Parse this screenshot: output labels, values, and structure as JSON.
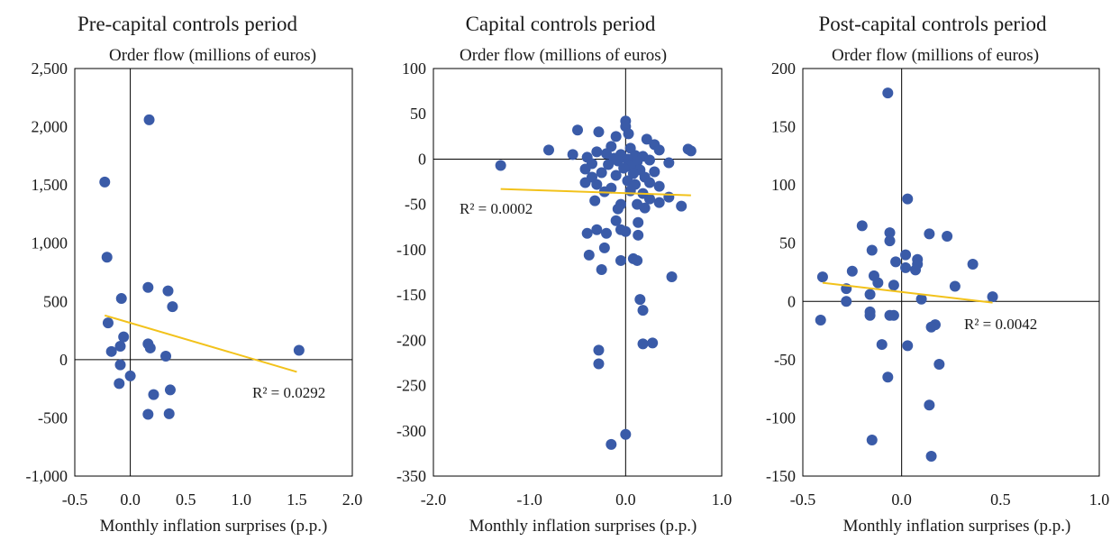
{
  "chart_data": [
    {
      "type": "scatter",
      "title": "Pre-capital controls period",
      "ylabel": "Order flow (millions of euros)",
      "xlabel": "Monthly inflation surprises (p.p.)",
      "xlim": [
        -0.5,
        2.0
      ],
      "ylim": [
        -1000,
        2500
      ],
      "xticks": [
        -0.5,
        0.0,
        0.5,
        1.0,
        1.5,
        2.0
      ],
      "yticks": [
        -1000,
        -500,
        0,
        500,
        1000,
        1500,
        2000,
        2500
      ],
      "xtick_labels": [
        "-0.5",
        "0.0",
        "0.5",
        "1.0",
        "1.5",
        "2.0"
      ],
      "ytick_labels": [
        "-1,000",
        "-500",
        "0",
        "500",
        "1,000",
        "1,500",
        "2,000",
        "2,500"
      ],
      "point_color": "#3a5ba8",
      "trend_color": "#f2c21b",
      "trendline": {
        "x": [
          -0.23,
          1.5
        ],
        "y": [
          380,
          -105
        ]
      },
      "r_squared": "R² = 0.0292",
      "points": [
        {
          "x": 0.17,
          "y": 2060
        },
        {
          "x": -0.23,
          "y": 1525
        },
        {
          "x": -0.21,
          "y": 880
        },
        {
          "x": 0.16,
          "y": 620
        },
        {
          "x": 0.34,
          "y": 590
        },
        {
          "x": -0.08,
          "y": 525
        },
        {
          "x": 0.38,
          "y": 455
        },
        {
          "x": -0.2,
          "y": 315
        },
        {
          "x": -0.06,
          "y": 195
        },
        {
          "x": 0.16,
          "y": 135
        },
        {
          "x": -0.09,
          "y": 115
        },
        {
          "x": 0.18,
          "y": 100
        },
        {
          "x": -0.17,
          "y": 70
        },
        {
          "x": 1.52,
          "y": 80
        },
        {
          "x": 0.32,
          "y": 30
        },
        {
          "x": -0.09,
          "y": -45
        },
        {
          "x": 0.0,
          "y": -140
        },
        {
          "x": -0.1,
          "y": -205
        },
        {
          "x": 0.36,
          "y": -260
        },
        {
          "x": 0.21,
          "y": -300
        },
        {
          "x": 0.16,
          "y": -470
        },
        {
          "x": 0.35,
          "y": -465
        }
      ]
    },
    {
      "type": "scatter",
      "title": "Capital controls period",
      "ylabel": "Order flow (millions of euros)",
      "xlabel": "Monthly inflation surprises (p.p.)",
      "xlim": [
        -2.0,
        1.0
      ],
      "ylim": [
        -350,
        100
      ],
      "xticks": [
        -2.0,
        -1.0,
        0.0,
        1.0
      ],
      "yticks": [
        -350,
        -300,
        -250,
        -200,
        -150,
        -100,
        -50,
        0,
        50,
        100
      ],
      "xtick_labels": [
        "-2.0",
        "-1.0",
        "0.0",
        "1.0"
      ],
      "ytick_labels": [
        "-350",
        "-300",
        "-250",
        "-200",
        "-150",
        "-100",
        "-50",
        "0",
        "50",
        "100"
      ],
      "point_color": "#3a5ba8",
      "trend_color": "#f2c21b",
      "trendline": {
        "x": [
          -1.3,
          0.68
        ],
        "y": [
          -33,
          -40
        ]
      },
      "r_squared": "R² = 0.0002",
      "points": [
        {
          "x": -1.3,
          "y": -7
        },
        {
          "x": -0.8,
          "y": 10
        },
        {
          "x": -0.55,
          "y": 5
        },
        {
          "x": -0.5,
          "y": 32
        },
        {
          "x": -0.28,
          "y": 30
        },
        {
          "x": 0.0,
          "y": 42
        },
        {
          "x": 0.0,
          "y": 36
        },
        {
          "x": 0.03,
          "y": 28
        },
        {
          "x": -0.1,
          "y": 25
        },
        {
          "x": 0.22,
          "y": 22
        },
        {
          "x": 0.3,
          "y": 16
        },
        {
          "x": -0.15,
          "y": 14
        },
        {
          "x": 0.05,
          "y": 12
        },
        {
          "x": 0.35,
          "y": 10
        },
        {
          "x": 0.65,
          "y": 11
        },
        {
          "x": 0.68,
          "y": 9
        },
        {
          "x": -0.3,
          "y": 8
        },
        {
          "x": -0.2,
          "y": 6
        },
        {
          "x": -0.05,
          "y": 5
        },
        {
          "x": 0.1,
          "y": 4
        },
        {
          "x": 0.18,
          "y": 3
        },
        {
          "x": -0.4,
          "y": 2
        },
        {
          "x": -0.12,
          "y": 1
        },
        {
          "x": 0.02,
          "y": 0
        },
        {
          "x": 0.25,
          "y": -1
        },
        {
          "x": -0.08,
          "y": -2
        },
        {
          "x": 0.12,
          "y": -3
        },
        {
          "x": 0.45,
          "y": -4
        },
        {
          "x": -0.35,
          "y": -5
        },
        {
          "x": -0.18,
          "y": -6
        },
        {
          "x": 0.05,
          "y": -8
        },
        {
          "x": -0.02,
          "y": -10
        },
        {
          "x": 0.15,
          "y": -12
        },
        {
          "x": -0.42,
          "y": -11
        },
        {
          "x": 0.3,
          "y": -14
        },
        {
          "x": -0.25,
          "y": -15
        },
        {
          "x": 0.08,
          "y": -16
        },
        {
          "x": -0.1,
          "y": -18
        },
        {
          "x": 0.2,
          "y": -20
        },
        {
          "x": -0.35,
          "y": -20
        },
        {
          "x": 0.02,
          "y": -24
        },
        {
          "x": 0.25,
          "y": -26
        },
        {
          "x": -0.42,
          "y": -26
        },
        {
          "x": -0.3,
          "y": -28
        },
        {
          "x": 0.1,
          "y": -28
        },
        {
          "x": 0.35,
          "y": -30
        },
        {
          "x": -0.15,
          "y": -32
        },
        {
          "x": 0.05,
          "y": -35
        },
        {
          "x": -0.22,
          "y": -36
        },
        {
          "x": 0.18,
          "y": -38
        },
        {
          "x": 0.45,
          "y": -42
        },
        {
          "x": 0.25,
          "y": -44
        },
        {
          "x": -0.32,
          "y": -46
        },
        {
          "x": 0.35,
          "y": -48
        },
        {
          "x": -0.05,
          "y": -50
        },
        {
          "x": 0.12,
          "y": -50
        },
        {
          "x": 0.58,
          "y": -52
        },
        {
          "x": 0.2,
          "y": -54
        },
        {
          "x": -0.08,
          "y": -55
        },
        {
          "x": -0.1,
          "y": -68
        },
        {
          "x": 0.13,
          "y": -70
        },
        {
          "x": -0.3,
          "y": -78
        },
        {
          "x": -0.05,
          "y": -78
        },
        {
          "x": 0.0,
          "y": -80
        },
        {
          "x": -0.2,
          "y": -82
        },
        {
          "x": 0.13,
          "y": -84
        },
        {
          "x": -0.4,
          "y": -82
        },
        {
          "x": -0.22,
          "y": -98
        },
        {
          "x": -0.38,
          "y": -106
        },
        {
          "x": -0.05,
          "y": -112
        },
        {
          "x": 0.08,
          "y": -110
        },
        {
          "x": 0.12,
          "y": -112
        },
        {
          "x": -0.25,
          "y": -122
        },
        {
          "x": 0.48,
          "y": -130
        },
        {
          "x": 0.15,
          "y": -155
        },
        {
          "x": 0.18,
          "y": -167
        },
        {
          "x": 0.18,
          "y": -204
        },
        {
          "x": 0.28,
          "y": -203
        },
        {
          "x": -0.28,
          "y": -211
        },
        {
          "x": -0.28,
          "y": -226
        },
        {
          "x": 0.0,
          "y": -304
        },
        {
          "x": -0.15,
          "y": -315
        }
      ]
    },
    {
      "type": "scatter",
      "title": "Post-capital controls period",
      "ylabel": "Order flow (millions of euros)",
      "xlabel": "Monthly inflation surprises (p.p.)",
      "xlim": [
        -0.5,
        1.0
      ],
      "ylim": [
        -150,
        200
      ],
      "xticks": [
        -0.5,
        0.0,
        0.5,
        1.0
      ],
      "yticks": [
        -150,
        -100,
        -50,
        0,
        50,
        100,
        150,
        200
      ],
      "xtick_labels": [
        "-0.5",
        "0.0",
        "0.5",
        "1.0"
      ],
      "ytick_labels": [
        "-150",
        "-100",
        "-50",
        "0",
        "50",
        "100",
        "150",
        "200"
      ],
      "point_color": "#3a5ba8",
      "trend_color": "#f2c21b",
      "trendline": {
        "x": [
          -0.4,
          0.46
        ],
        "y": [
          16,
          -1
        ]
      },
      "r_squared": "R² = 0.0042",
      "points": [
        {
          "x": -0.07,
          "y": 179
        },
        {
          "x": 0.03,
          "y": 88
        },
        {
          "x": -0.2,
          "y": 65
        },
        {
          "x": -0.06,
          "y": 59
        },
        {
          "x": 0.14,
          "y": 58
        },
        {
          "x": 0.23,
          "y": 56
        },
        {
          "x": -0.06,
          "y": 52
        },
        {
          "x": -0.15,
          "y": 44
        },
        {
          "x": 0.02,
          "y": 40
        },
        {
          "x": 0.08,
          "y": 36
        },
        {
          "x": -0.03,
          "y": 34
        },
        {
          "x": 0.08,
          "y": 32
        },
        {
          "x": 0.36,
          "y": 32
        },
        {
          "x": 0.02,
          "y": 29
        },
        {
          "x": 0.07,
          "y": 27
        },
        {
          "x": -0.25,
          "y": 26
        },
        {
          "x": -0.14,
          "y": 22
        },
        {
          "x": -0.4,
          "y": 21
        },
        {
          "x": -0.12,
          "y": 16
        },
        {
          "x": -0.04,
          "y": 14
        },
        {
          "x": 0.27,
          "y": 13
        },
        {
          "x": -0.28,
          "y": 11
        },
        {
          "x": -0.16,
          "y": 6
        },
        {
          "x": 0.46,
          "y": 4
        },
        {
          "x": 0.1,
          "y": 2
        },
        {
          "x": -0.28,
          "y": 0
        },
        {
          "x": -0.16,
          "y": -9
        },
        {
          "x": -0.16,
          "y": -12
        },
        {
          "x": -0.06,
          "y": -12
        },
        {
          "x": -0.04,
          "y": -12
        },
        {
          "x": -0.41,
          "y": -16
        },
        {
          "x": 0.17,
          "y": -20
        },
        {
          "x": 0.15,
          "y": -22
        },
        {
          "x": -0.1,
          "y": -37
        },
        {
          "x": 0.03,
          "y": -38
        },
        {
          "x": 0.19,
          "y": -54
        },
        {
          "x": -0.07,
          "y": -65
        },
        {
          "x": 0.14,
          "y": -89
        },
        {
          "x": -0.15,
          "y": -119
        },
        {
          "x": 0.15,
          "y": -133
        }
      ]
    }
  ]
}
